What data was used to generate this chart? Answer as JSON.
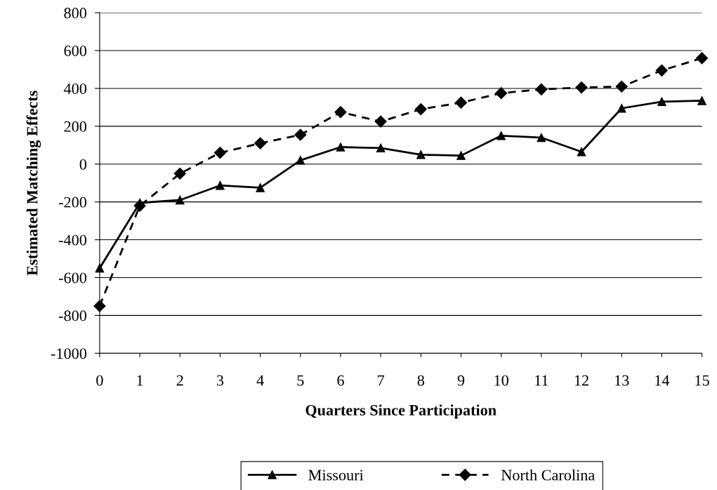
{
  "chart_data": {
    "type": "line",
    "xlabel": "Quarters Since Participation",
    "ylabel": "Estimated Matching Effects",
    "x": [
      0,
      1,
      2,
      3,
      4,
      5,
      6,
      7,
      8,
      9,
      10,
      11,
      12,
      13,
      14,
      15
    ],
    "series": [
      {
        "name": "Missouri",
        "color": "#000000",
        "marker": "triangle",
        "line_style": "solid",
        "values": [
          -550,
          -205,
          -190,
          -113,
          -125,
          20,
          90,
          85,
          50,
          45,
          150,
          140,
          65,
          295,
          330,
          335
        ]
      },
      {
        "name": "North Carolina",
        "color": "#000000",
        "marker": "diamond",
        "line_style": "dashed",
        "values": [
          -750,
          -220,
          -50,
          60,
          110,
          155,
          275,
          225,
          290,
          325,
          375,
          395,
          405,
          410,
          495,
          560
        ]
      }
    ],
    "xlim": [
      0,
      15
    ],
    "xticks": [
      0,
      1,
      2,
      3,
      4,
      5,
      6,
      7,
      8,
      9,
      10,
      11,
      12,
      13,
      14,
      15
    ],
    "ylim": [
      -1000,
      800
    ],
    "yticks": [
      -1000,
      -800,
      -600,
      -400,
      -200,
      0,
      200,
      400,
      600,
      800
    ],
    "grid": "y",
    "legend": "bottom"
  }
}
